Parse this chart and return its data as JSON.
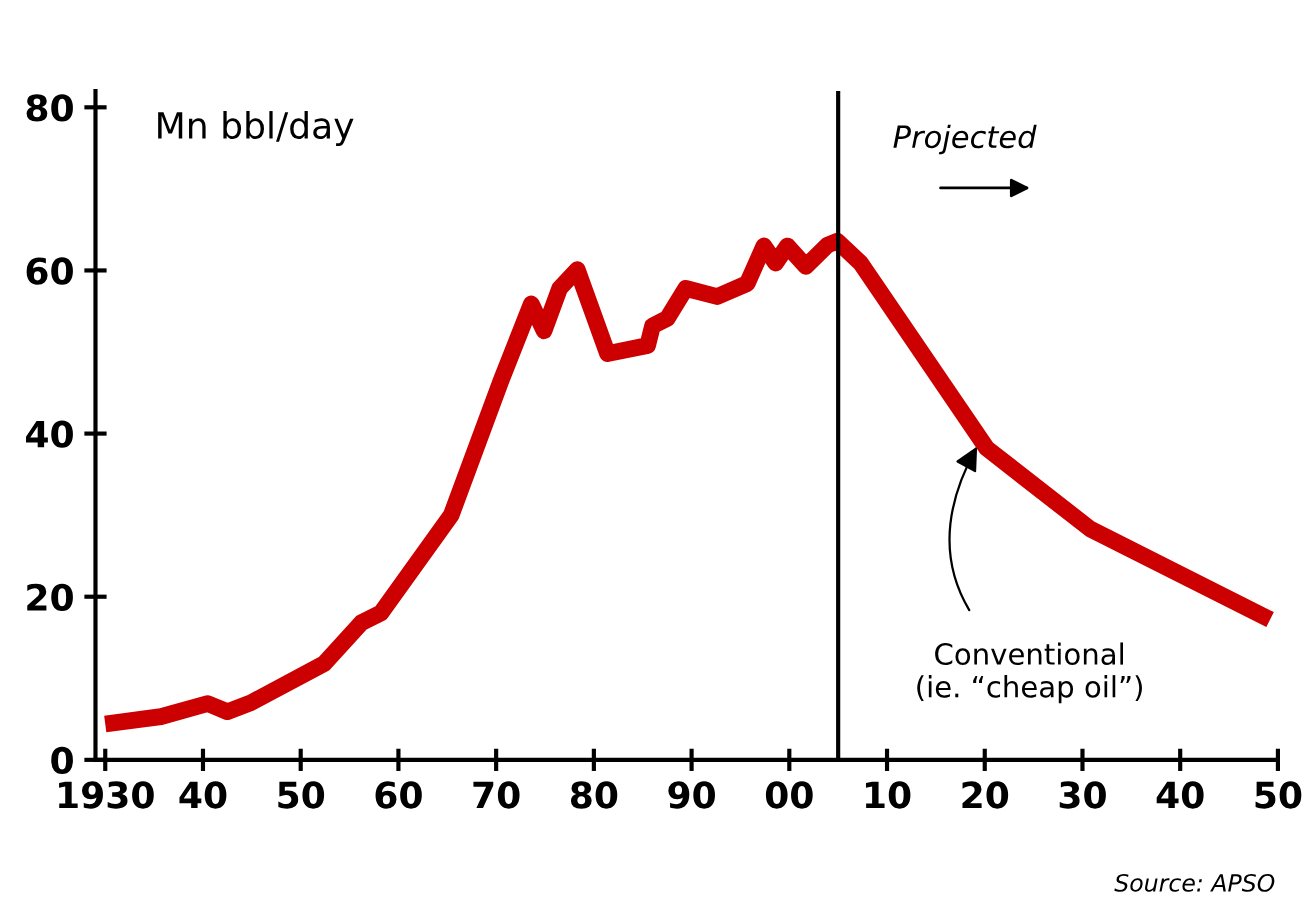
{
  "chart_data": {
    "type": "line",
    "ylabel": "Mn bbl/day",
    "x": [
      1930,
      1935.7,
      1940.5,
      1942.5,
      1944.9,
      1952.4,
      1956.2,
      1958.2,
      1965.4,
      1970.5,
      1973.6,
      1974.9,
      1976.5,
      1978.3,
      1981.4,
      1985.5,
      1986.0,
      1987.5,
      1989.4,
      1992.6,
      1995.7,
      1997.4,
      1998.6,
      1999.8,
      2001.7,
      2003.9,
      2004.9,
      2007.3,
      2020.2,
      2030.8,
      2049.2
    ],
    "series": [
      {
        "color": "#cc0000",
        "values": [
          4.4,
          5.3,
          6.9,
          5.9,
          7.0,
          11.8,
          16.8,
          18.0,
          30.0,
          46.5,
          55.9,
          52.6,
          57.8,
          60.1,
          49.8,
          50.8,
          53.2,
          54.1,
          57.8,
          56.8,
          58.4,
          63.0,
          60.9,
          63.0,
          60.5,
          63.1,
          63.6,
          60.9,
          38.2,
          28.3,
          17.2
        ]
      }
    ],
    "xlim": [
      1929,
      2050
    ],
    "ylim": [
      0,
      82
    ],
    "xticks": [
      {
        "value": 1930,
        "label": "1930"
      },
      {
        "value": 1940,
        "label": "40"
      },
      {
        "value": 1950,
        "label": "50"
      },
      {
        "value": 1960,
        "label": "60"
      },
      {
        "value": 1970,
        "label": "70"
      },
      {
        "value": 1980,
        "label": "80"
      },
      {
        "value": 1990,
        "label": "90"
      },
      {
        "value": 2000,
        "label": "00"
      },
      {
        "value": 2010,
        "label": "10"
      },
      {
        "value": 2020,
        "label": "20"
      },
      {
        "value": 2030,
        "label": "30"
      },
      {
        "value": 2040,
        "label": "40"
      },
      {
        "value": 2050,
        "label": "50"
      }
    ],
    "yticks": [
      0,
      20,
      40,
      60,
      80
    ],
    "ref_lines": [
      {
        "axis": "x",
        "value": 2005,
        "color": "#000000"
      }
    ],
    "annotations": [
      "Projected",
      {
        "text": "Conventional\n(ie. “cheap oil”)",
        "x": 2019.5,
        "y": 39
      },
      "Source: APSO"
    ],
    "grid": false,
    "legend": false,
    "marker": "none",
    "line_style": "solid"
  }
}
